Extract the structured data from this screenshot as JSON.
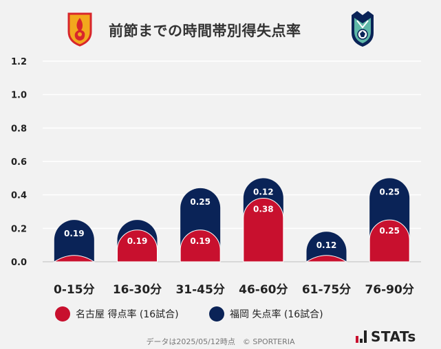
{
  "title": "前節までの時間帯別得失点率",
  "emblems": {
    "left": "nagoya-emblem-icon",
    "right": "fukuoka-emblem-icon"
  },
  "colors": {
    "scored": "#c8102e",
    "conceded": "#0a2357",
    "grid": "#ffffff",
    "background": "#f2f2f2"
  },
  "legend": [
    {
      "label": "名古屋 得点率 (16試合)",
      "color": "#c8102e"
    },
    {
      "label": "福岡 失点率 (16試合)",
      "color": "#0a2357"
    }
  ],
  "footer": {
    "text": "データは2025/05/12時点　© SPORTERIA"
  },
  "brand": {
    "text": "STATs"
  },
  "chart_data": {
    "type": "bar",
    "categories": [
      "0-15分",
      "16-30分",
      "31-45分",
      "46-60分",
      "61-75分",
      "76-90分"
    ],
    "series": [
      {
        "name": "名古屋 得点率 (16試合)",
        "values": [
          0.06,
          0.19,
          0.19,
          0.38,
          0.06,
          0.25
        ],
        "labels": [
          "",
          "0.19",
          "0.19",
          "0.38",
          "",
          "0.25"
        ]
      },
      {
        "name": "福岡 失点率 (16試合)",
        "values": [
          0.19,
          0.06,
          0.25,
          0.12,
          0.12,
          0.25
        ],
        "labels": [
          "0.19",
          "",
          "0.25",
          "0.12",
          "0.12",
          "0.25"
        ]
      }
    ],
    "stacked": true,
    "yticks": [
      "0.0",
      "0.2",
      "0.4",
      "0.6",
      "0.8",
      "1.0",
      "1.2"
    ],
    "ylim": [
      0,
      1.2
    ],
    "grid": true
  }
}
